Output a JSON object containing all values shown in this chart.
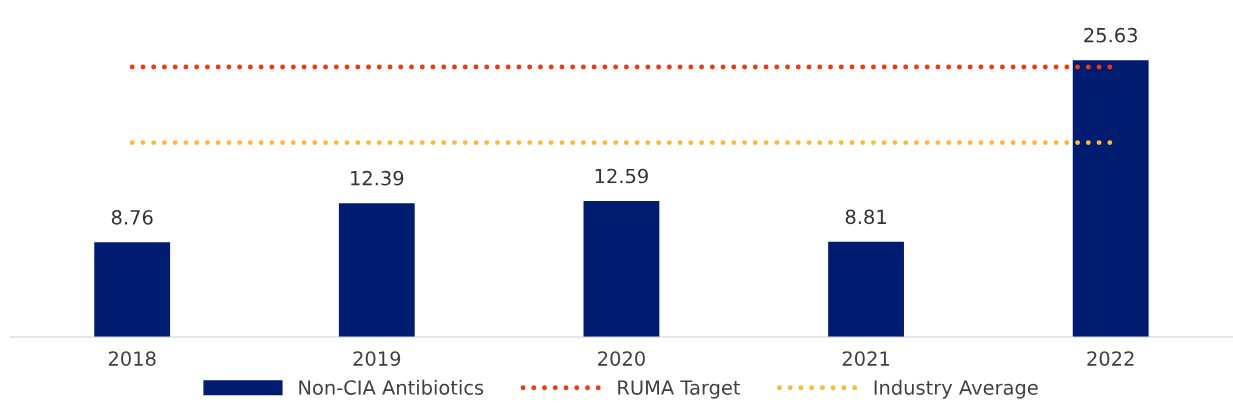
{
  "chart_data": {
    "type": "bar",
    "categories": [
      "2018",
      "2019",
      "2020",
      "2021",
      "2022"
    ],
    "series": [
      {
        "name": "Non-CIA Antibiotics",
        "color": "#001c71",
        "values": [
          8.76,
          12.39,
          12.59,
          8.81,
          25.63
        ],
        "value_labels": [
          "8.76",
          "12.39",
          "12.59",
          "8.81",
          "25.63"
        ]
      },
      {
        "name": "RUMA Target",
        "type": "line",
        "color": "#ee3a17",
        "line_style": "dotted",
        "values": [
          25,
          25,
          25,
          25,
          25
        ]
      },
      {
        "name": "Industry Average",
        "type": "line",
        "color": "#fbb93c",
        "line_style": "dotted",
        "values": [
          18,
          18,
          18,
          18,
          18
        ]
      }
    ],
    "grid": false,
    "legend": "bottom",
    "tick_labels": "x"
  }
}
